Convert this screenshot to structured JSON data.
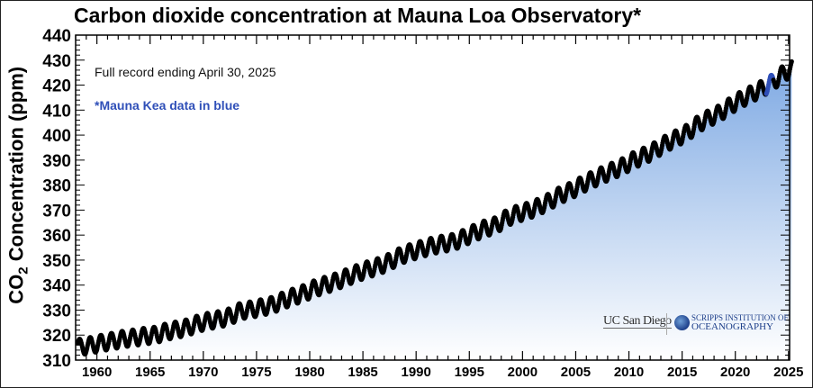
{
  "chart_data": {
    "type": "scatter",
    "title": "Carbon dioxide concentration at Mauna Loa Observatory*",
    "ylabel_main": "CO",
    "ylabel_sub": "2",
    "ylabel_rest": " Concentration (ppm)",
    "xlabel": "",
    "xlim": [
      1958,
      2025.1
    ],
    "ylim": [
      310,
      440
    ],
    "x_ticks": [
      1960,
      1965,
      1970,
      1975,
      1980,
      1985,
      1990,
      1995,
      2000,
      2005,
      2010,
      2015,
      2020,
      2025
    ],
    "y_ticks": [
      310,
      320,
      330,
      340,
      350,
      360,
      370,
      380,
      390,
      400,
      410,
      420,
      430,
      440
    ],
    "grid": false,
    "annotations": [
      "Full record ending April 30, 2025",
      "*Mauna Kea data in blue"
    ],
    "series": [
      {
        "years": [
          1958,
          1959,
          1960,
          1961,
          1962,
          1963,
          1964,
          1965,
          1966,
          1967,
          1968,
          1969,
          1970,
          1971,
          1972,
          1973,
          1974,
          1975,
          1976,
          1977,
          1978,
          1979,
          1980,
          1981,
          1982,
          1983,
          1984,
          1985,
          1986,
          1987,
          1988,
          1989,
          1990,
          1991,
          1992,
          1993,
          1994,
          1995,
          1996,
          1997,
          1998,
          1999,
          2000,
          2001,
          2002,
          2003,
          2004,
          2005,
          2006,
          2007,
          2008,
          2009,
          2010,
          2011,
          2012,
          2013,
          2014,
          2015,
          2016,
          2017,
          2018,
          2019,
          2020,
          2021,
          2022,
          2023,
          2024,
          2025
        ],
        "annual_mean": [
          315.3,
          315.98,
          316.91,
          317.64,
          318.45,
          318.99,
          319.62,
          320.04,
          321.37,
          322.18,
          323.05,
          324.62,
          325.68,
          326.32,
          327.46,
          329.68,
          330.19,
          331.13,
          332.03,
          333.84,
          335.41,
          336.84,
          338.76,
          340.12,
          341.48,
          343.15,
          344.87,
          346.35,
          347.61,
          349.31,
          351.69,
          353.2,
          354.45,
          355.7,
          356.54,
          357.21,
          358.96,
          360.97,
          362.74,
          363.88,
          366.84,
          368.54,
          369.71,
          371.32,
          373.45,
          375.98,
          377.7,
          379.98,
          382.09,
          384.02,
          385.83,
          387.64,
          390.1,
          391.85,
          394.06,
          396.74,
          398.81,
          401.01,
          404.41,
          406.76,
          408.72,
          411.65,
          414.21,
          416.41,
          418.53,
          421.08,
          424.61,
          427.1
        ],
        "seasonal_amplitude_ppm": 3.2,
        "record_start": 1958.21,
        "record_end": 2025.33,
        "color": "#000000",
        "mauna_kea_color": "#2f4fb8",
        "mauna_kea_period": [
          2022.9,
          2023.55
        ]
      }
    ],
    "fill_gradient": [
      "#ffffff",
      "#7ea9e3"
    ]
  },
  "logos": {
    "ucsd": "UC San Diego",
    "scripps_line1": "SCRIPPS INSTITUTION OF",
    "scripps_line2": "OCEANOGRAPHY"
  }
}
